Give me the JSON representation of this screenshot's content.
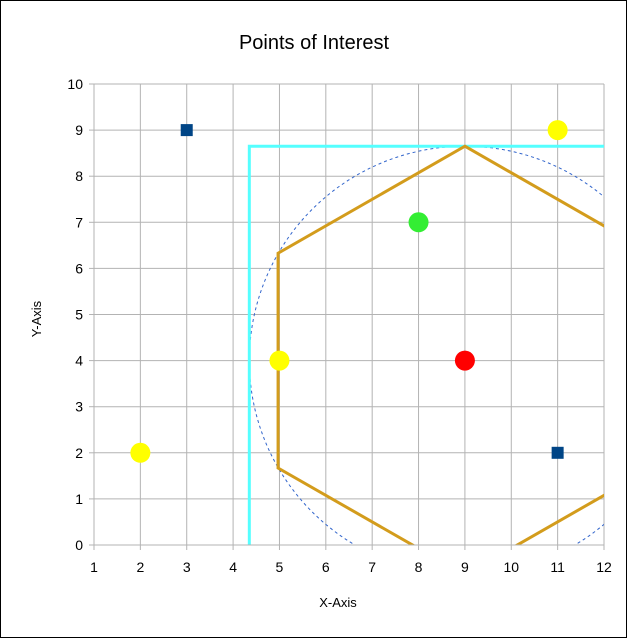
{
  "chart_data": {
    "type": "scatter",
    "title": "Points of Interest",
    "xlabel": "X-Axis",
    "ylabel": "Y-Axis",
    "xlim": [
      1,
      12
    ],
    "ylim": [
      0,
      10
    ],
    "xticks": [
      "1",
      "2",
      "3",
      "4",
      "5",
      "6",
      "7",
      "8",
      "9",
      "10",
      "11",
      "12"
    ],
    "yticks": [
      "0",
      "1",
      "2",
      "3",
      "4",
      "5",
      "6",
      "7",
      "8",
      "9",
      "10"
    ],
    "grid": true,
    "legend": "none",
    "colors": {
      "grid": "#b3b3b3",
      "axis": "#000000",
      "square_markers": "#004586",
      "yellow": "#ffff00",
      "green": "#33ee33",
      "red": "#ff0000",
      "bounding_box": "#55ffff",
      "hexagon": "#d39c1c",
      "circle": "#3366cc"
    },
    "points": [
      {
        "x": 3,
        "y": 9,
        "marker": "square",
        "color": "#004586"
      },
      {
        "x": 11,
        "y": 2,
        "marker": "square",
        "color": "#004586"
      },
      {
        "x": 11,
        "y": 9,
        "marker": "circle",
        "color": "#ffff00"
      },
      {
        "x": 5,
        "y": 4,
        "marker": "circle",
        "color": "#ffff00"
      },
      {
        "x": 2,
        "y": 2,
        "marker": "circle",
        "color": "#ffff00"
      },
      {
        "x": 8,
        "y": 7,
        "marker": "circle",
        "color": "#33ee33"
      },
      {
        "x": 9,
        "y": 4,
        "marker": "circle",
        "color": "#ff0000"
      }
    ],
    "circle": {
      "cx": 9,
      "cy": 4,
      "r": 4.65,
      "style": "dashed"
    },
    "hexagon": [
      [
        9,
        8.65
      ],
      [
        13.03,
        6.33
      ],
      [
        13.03,
        1.67
      ],
      [
        9,
        -0.65
      ],
      [
        4.97,
        1.67
      ],
      [
        4.97,
        6.33
      ]
    ],
    "bounding_box": {
      "x_min": 4.35,
      "y_max": 8.65
    }
  }
}
